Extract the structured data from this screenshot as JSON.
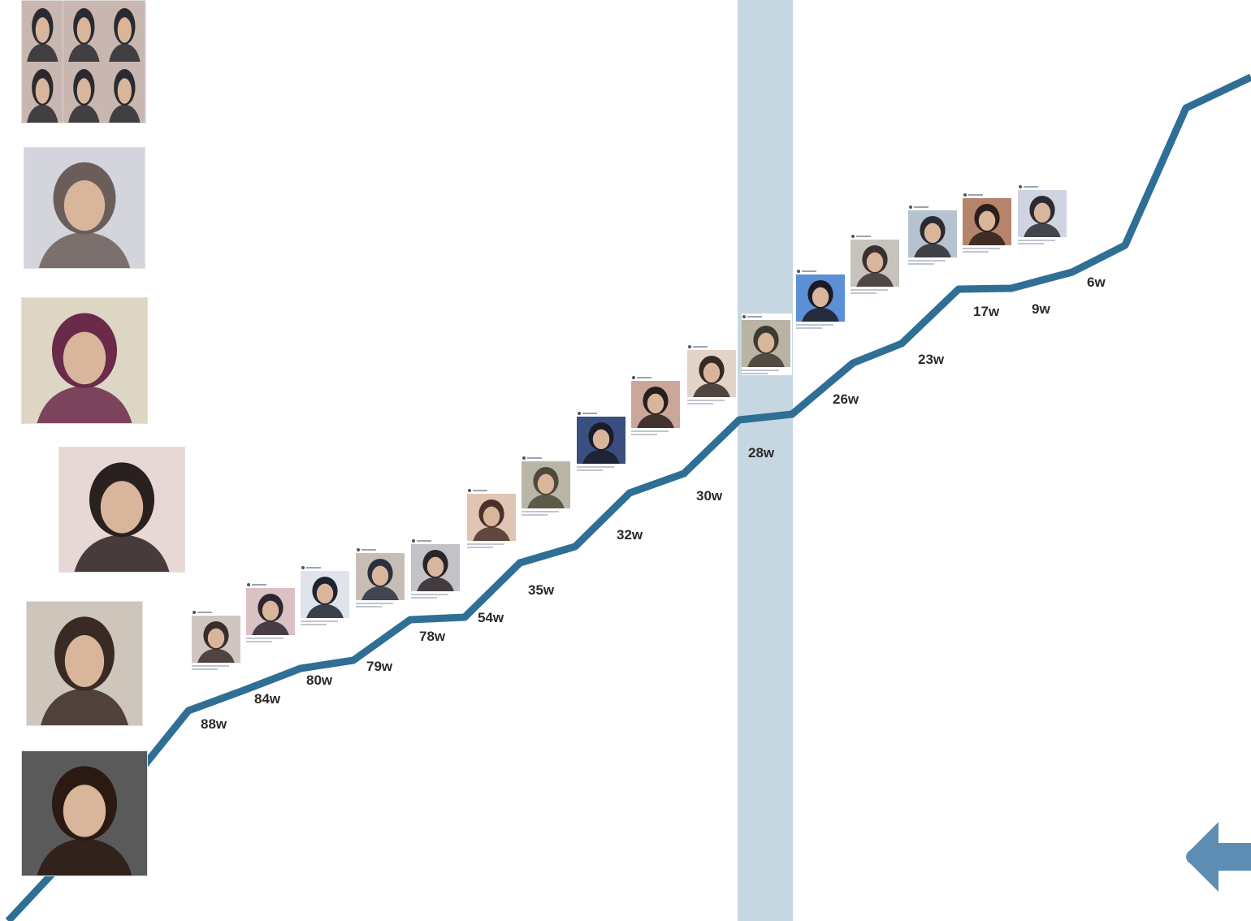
{
  "colors": {
    "line": "#2f6f96",
    "band": "#c7d7e2",
    "arrow": "#5d8db3",
    "label": "#2b2b2b",
    "background": "#ffffff"
  },
  "left_photos": [
    {
      "name": "photo-girl-collage",
      "tone": [
        "#c8b7b0",
        "#2a2a30"
      ]
    },
    {
      "name": "photo-woman-gray-background",
      "tone": [
        "#d4d4dc",
        "#6b5e5a"
      ]
    },
    {
      "name": "photo-woman-purple-hair-phone",
      "tone": [
        "#ddd6c4",
        "#6a2a4a"
      ]
    },
    {
      "name": "photo-young-man-red-shirt",
      "tone": [
        "#e8d8d5",
        "#2a2020"
      ]
    },
    {
      "name": "photo-girl-hand-gesture",
      "tone": [
        "#cfc6bb",
        "#3a2a25"
      ]
    },
    {
      "name": "photo-smiling-man-car",
      "tone": [
        "#5a5a5a",
        "#2a1a12"
      ]
    }
  ],
  "timeline": [
    {
      "label": "88w",
      "tone": [
        "#cfc6c2",
        "#3a2c2c"
      ]
    },
    {
      "label": "84w",
      "tone": [
        "#d9c1c4",
        "#2e2630"
      ]
    },
    {
      "label": "80w",
      "tone": [
        "#dfe4ec",
        "#1d2330"
      ]
    },
    {
      "label": "79w",
      "tone": [
        "#c8bdb6",
        "#283040"
      ]
    },
    {
      "label": "78w",
      "tone": [
        "#c3c2c6",
        "#2b2428"
      ]
    },
    {
      "label": "54w",
      "tone": [
        "#e0c4b4",
        "#4a3028"
      ]
    },
    {
      "label": "35w",
      "tone": [
        "#b9b6a8",
        "#4d4a3a"
      ]
    },
    {
      "label": "32w",
      "tone": [
        "#3a4e80",
        "#1a1c28"
      ]
    },
    {
      "label": "30w",
      "tone": [
        "#c9a79a",
        "#2a1e1c"
      ]
    },
    {
      "label": "28w",
      "tone": [
        "#e3d3c8",
        "#362a26"
      ]
    },
    {
      "label": "28w",
      "tone": [
        "#b8b3a3",
        "#3d3a34"
      ]
    },
    {
      "label": "26w",
      "tone": [
        "#5b8fd6",
        "#1a1a22"
      ]
    },
    {
      "label": "23w",
      "tone": [
        "#c6c2bc",
        "#3a3030"
      ]
    },
    {
      "label": "17w",
      "tone": [
        "#b6c2cf",
        "#2a2a30"
      ]
    },
    {
      "label": "9w",
      "tone": [
        "#b6846a",
        "#2c1e1a"
      ]
    },
    {
      "label": "6w",
      "tone": [
        "#cfd4e0",
        "#2c2a34"
      ]
    }
  ],
  "week_labels": [
    "88w",
    "84w",
    "80w",
    "79w",
    "78w",
    "54w",
    "35w",
    "32w",
    "30w",
    "28w",
    "26w",
    "23w",
    "17w",
    "9w",
    "6w"
  ]
}
